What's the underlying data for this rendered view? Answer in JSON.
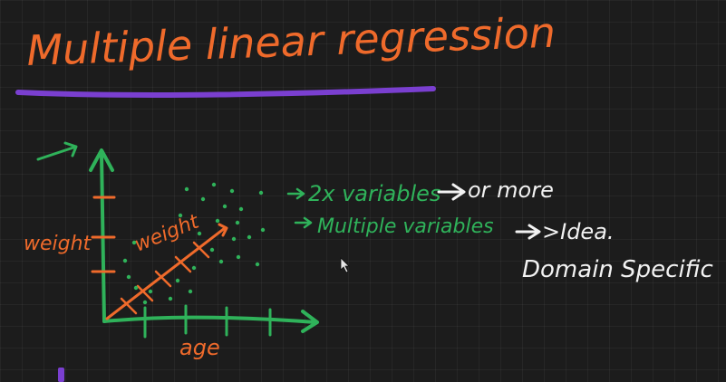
{
  "title": "Multiple linear regression",
  "graph": {
    "y_axis_label": "weight",
    "line_label": "weight",
    "x_axis_label": "age"
  },
  "notes": {
    "line1": "2x variables",
    "line1_suffix": "or more",
    "line2": "Multiple variables",
    "line2_suffix": ">Idea.",
    "line3": "Domain Specific"
  },
  "colors": {
    "background": "#1c1c1c",
    "title_ink": "#ef6a2b",
    "graph_ink": "#2fb25a",
    "note_ink": "#f2f2f2",
    "underline": "#7a3fd0"
  },
  "icons": {
    "cursor": "mouse-pointer-icon"
  }
}
